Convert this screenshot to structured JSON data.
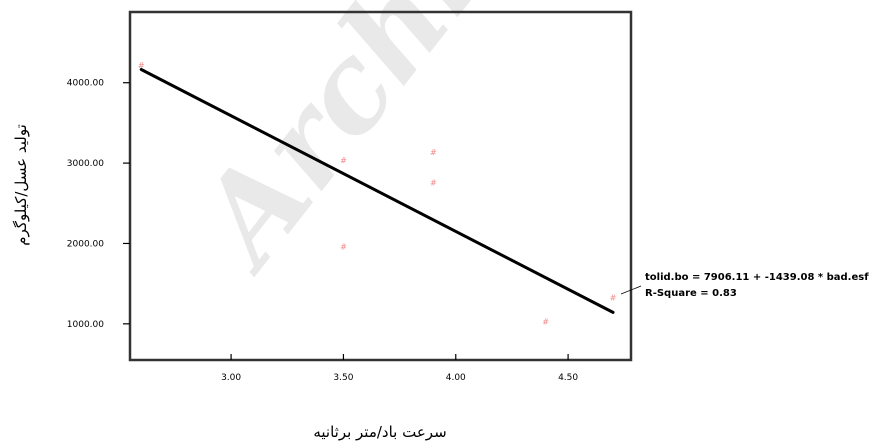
{
  "chart_data": {
    "type": "scatter",
    "xlabel": "سرعت باد/متر برثانیه",
    "ylabel": "تولید عسل/کیلوگرم",
    "xlim": [
      2.55,
      4.78
    ],
    "ylim": [
      550,
      4880
    ],
    "x_ticks": [
      "3.00",
      "3.50",
      "4.00",
      "4.50"
    ],
    "x_tick_values": [
      3.0,
      3.5,
      4.0,
      4.5
    ],
    "y_ticks": [
      "1000.00",
      "2000.00",
      "3000.00",
      "4000.00"
    ],
    "y_tick_values": [
      1000,
      2000,
      3000,
      4000
    ],
    "grid": false,
    "marker_color": "#f08a8a",
    "line_color": "#000000",
    "points": [
      {
        "x": 2.6,
        "y": 4220
      },
      {
        "x": 3.5,
        "y": 3040
      },
      {
        "x": 3.5,
        "y": 1960
      },
      {
        "x": 3.9,
        "y": 3140
      },
      {
        "x": 3.9,
        "y": 2760
      },
      {
        "x": 4.4,
        "y": 1030
      },
      {
        "x": 4.7,
        "y": 1330
      }
    ],
    "fit": {
      "intercept": 7906.11,
      "slope": -1439.08,
      "x_range": [
        2.6,
        4.7
      ],
      "equation": "tolid.bo = 7906.11 + -1439.08 * bad.esf",
      "r_squared": "R-Square = 0.83"
    }
  },
  "watermark": "Archive"
}
